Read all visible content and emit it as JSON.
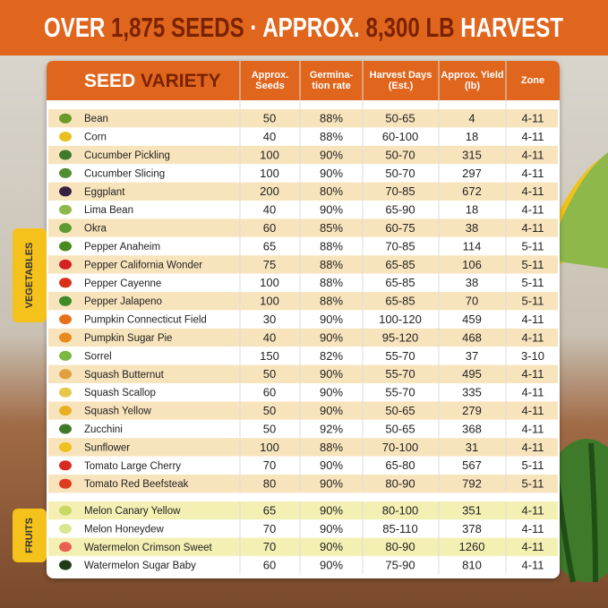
{
  "header": {
    "title": {
      "part1": "OVER",
      "part2": "1,875 SEEDS",
      "part3": "·",
      "part4": "APPROX.",
      "part5": "8,300 LB",
      "part6": "HARVEST"
    }
  },
  "table": {
    "seed_label": "SEED",
    "variety_label": "VARIETY",
    "columns": [
      "Approx. Seeds",
      "Germina-tion rate",
      "Harvest Days (Est.)",
      "Approx. Yield (lb)",
      "Zone"
    ],
    "groups": [
      {
        "label": "VEGETABLES",
        "rows": [
          [
            "Bean",
            50,
            "88%",
            "50-65",
            4,
            "4-11"
          ],
          [
            "Corn",
            40,
            "88%",
            "60-100",
            18,
            "4-11"
          ],
          [
            "Cucumber Pickling",
            100,
            "90%",
            "50-70",
            315,
            "4-11"
          ],
          [
            "Cucumber Slicing",
            100,
            "90%",
            "50-70",
            297,
            "4-11"
          ],
          [
            "Eggplant",
            200,
            "80%",
            "70-85",
            672,
            "4-11"
          ],
          [
            "Lima Bean",
            40,
            "90%",
            "65-90",
            18,
            "4-11"
          ],
          [
            "Okra",
            60,
            "85%",
            "60-75",
            38,
            "4-11"
          ],
          [
            "Pepper Anaheim",
            65,
            "88%",
            "70-85",
            114,
            "5-11"
          ],
          [
            "Pepper California Wonder",
            75,
            "88%",
            "65-85",
            106,
            "5-11"
          ],
          [
            "Pepper Cayenne",
            100,
            "88%",
            "65-85",
            38,
            "5-11"
          ],
          [
            "Pepper Jalapeno",
            100,
            "88%",
            "65-85",
            70,
            "5-11"
          ],
          [
            "Pumpkin Connecticut Field",
            30,
            "90%",
            "100-120",
            459,
            "4-11"
          ],
          [
            "Pumpkin Sugar Pie",
            40,
            "90%",
            "95-120",
            468,
            "4-11"
          ],
          [
            "Sorrel",
            150,
            "82%",
            "55-70",
            37,
            "3-10"
          ],
          [
            "Squash Butternut",
            50,
            "90%",
            "55-70",
            495,
            "4-11"
          ],
          [
            "Squash Scallop",
            60,
            "90%",
            "55-70",
            335,
            "4-11"
          ],
          [
            "Squash Yellow",
            50,
            "90%",
            "50-65",
            279,
            "4-11"
          ],
          [
            "Zucchini",
            50,
            "92%",
            "50-65",
            368,
            "4-11"
          ],
          [
            "Sunflower",
            100,
            "88%",
            "70-100",
            31,
            "4-11"
          ],
          [
            "Tomato Large Cherry",
            70,
            "90%",
            "65-80",
            567,
            "5-11"
          ],
          [
            "Tomato Red Beefsteak",
            80,
            "90%",
            "80-90",
            792,
            "5-11"
          ]
        ]
      },
      {
        "label": "FRUITS",
        "rows": [
          [
            "Melon Canary Yellow",
            65,
            "90%",
            "80-100",
            351,
            "4-11"
          ],
          [
            "Melon Honeydew",
            70,
            "90%",
            "85-110",
            378,
            "4-11"
          ],
          [
            "Watermelon Crimson Sweet",
            70,
            "90%",
            "80-90",
            1260,
            "4-11"
          ],
          [
            "Watermelon Sugar Baby",
            60,
            "90%",
            "75-90",
            810,
            "4-11"
          ]
        ]
      }
    ]
  }
}
